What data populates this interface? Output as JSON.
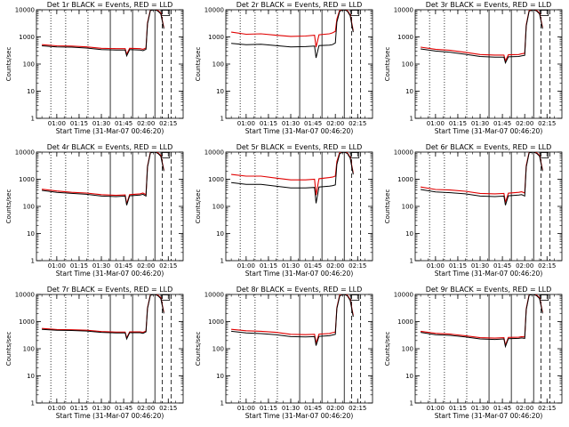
{
  "colors": {
    "events": "#000000",
    "lld": "#e00000",
    "background": "#ffffff"
  },
  "chart_data": [
    {
      "type": "line",
      "title": "Det 1r BLACK = Events, RED = LLD",
      "xlabel": "Start Time (31-Mar-07 00:46:20)",
      "ylabel": "Counts/sec",
      "yscale": "log",
      "ylim": [
        1,
        10000
      ],
      "ytick_labels": [
        "1",
        "10",
        "100",
        "1000",
        "10000"
      ],
      "xtick_labels": [
        "01:00",
        "01:15",
        "01:30",
        "01:45",
        "02:00",
        "02:15"
      ],
      "series": [
        {
          "name": "Events",
          "color": "#000000",
          "x": [
            "00:50",
            "01:00",
            "01:10",
            "01:20",
            "01:30",
            "01:40",
            "01:46",
            "01:47",
            "01:49",
            "01:56",
            "01:58",
            "02:00",
            "02:01",
            "02:03",
            "02:06",
            "02:08",
            "02:10",
            "02:12"
          ],
          "values": [
            470,
            430,
            420,
            390,
            340,
            330,
            330,
            200,
            340,
            330,
            310,
            350,
            3000,
            9500,
            10000,
            9000,
            7000,
            2000
          ]
        },
        {
          "name": "LLD",
          "color": "#e00000",
          "x": [
            "00:50",
            "01:00",
            "01:10",
            "01:20",
            "01:30",
            "01:40",
            "01:46",
            "01:47",
            "01:49",
            "01:56",
            "01:58",
            "02:00",
            "02:01",
            "02:03",
            "02:06",
            "02:08",
            "02:10",
            "02:12"
          ],
          "values": [
            520,
            470,
            460,
            430,
            380,
            370,
            370,
            230,
            380,
            370,
            350,
            390,
            3300,
            10000,
            10500,
            9500,
            7500,
            2200
          ]
        }
      ]
    },
    {
      "type": "line",
      "title": "Det 2r BLACK = Events, RED = LLD",
      "xlabel": "Start Time (31-Mar-07 00:46:20)",
      "ylabel": "Counts/sec",
      "yscale": "log",
      "ylim": [
        1,
        10000
      ],
      "ytick_labels": [
        "1",
        "10",
        "100",
        "1000",
        "10000"
      ],
      "xtick_labels": [
        "01:00",
        "01:15",
        "01:30",
        "01:45",
        "02:00",
        "02:15"
      ],
      "series": [
        {
          "name": "Events",
          "color": "#000000",
          "x": [
            "00:50",
            "01:00",
            "01:10",
            "01:20",
            "01:30",
            "01:40",
            "01:46",
            "01:47",
            "01:49",
            "01:56",
            "01:58",
            "02:00",
            "02:01",
            "02:03",
            "02:06",
            "02:08",
            "02:10",
            "02:12"
          ],
          "values": [
            580,
            520,
            540,
            480,
            430,
            440,
            460,
            170,
            480,
            500,
            520,
            600,
            3500,
            9000,
            10000,
            9000,
            6000,
            1500
          ]
        },
        {
          "name": "LLD",
          "color": "#e00000",
          "x": [
            "00:50",
            "01:00",
            "01:10",
            "01:20",
            "01:30",
            "01:40",
            "01:46",
            "01:47",
            "01:49",
            "01:56",
            "01:58",
            "02:00",
            "02:01",
            "02:03",
            "02:06",
            "02:08",
            "02:10",
            "02:12"
          ],
          "values": [
            1500,
            1250,
            1300,
            1150,
            1050,
            1080,
            1150,
            420,
            1200,
            1300,
            1400,
            1600,
            4500,
            10000,
            10500,
            9500,
            6500,
            1700
          ]
        }
      ]
    },
    {
      "type": "line",
      "title": "Det 3r BLACK = Events, RED = LLD",
      "xlabel": "Start Time (31-Mar-07 00:46:20)",
      "ylabel": "Counts/sec",
      "yscale": "log",
      "ylim": [
        1,
        10000
      ],
      "ytick_labels": [
        "1",
        "10",
        "100",
        "1000",
        "10000"
      ],
      "xtick_labels": [
        "01:00",
        "01:15",
        "01:30",
        "01:45",
        "02:00",
        "02:15"
      ],
      "series": [
        {
          "name": "Events",
          "color": "#000000",
          "x": [
            "00:50",
            "01:00",
            "01:10",
            "01:20",
            "01:30",
            "01:40",
            "01:46",
            "01:47",
            "01:49",
            "01:56",
            "01:58",
            "02:00",
            "02:01",
            "02:03",
            "02:06",
            "02:08",
            "02:10",
            "02:12"
          ],
          "values": [
            360,
            300,
            270,
            230,
            190,
            180,
            180,
            110,
            185,
            190,
            200,
            210,
            2500,
            9000,
            10000,
            9000,
            7000,
            2000
          ]
        },
        {
          "name": "LLD",
          "color": "#e00000",
          "x": [
            "00:50",
            "01:00",
            "01:10",
            "01:20",
            "01:30",
            "01:40",
            "01:46",
            "01:47",
            "01:49",
            "01:56",
            "01:58",
            "02:00",
            "02:01",
            "02:03",
            "02:06",
            "02:08",
            "02:10",
            "02:12"
          ],
          "values": [
            420,
            350,
            320,
            270,
            225,
            215,
            215,
            130,
            220,
            225,
            240,
            250,
            2800,
            9500,
            10500,
            9500,
            7500,
            2200
          ]
        }
      ]
    },
    {
      "type": "line",
      "title": "Det 4r BLACK = Events, RED = LLD",
      "xlabel": "Start Time (31-Mar-07 00:46:20)",
      "ylabel": "Counts/sec",
      "yscale": "log",
      "ylim": [
        1,
        10000
      ],
      "ytick_labels": [
        "1",
        "10",
        "100",
        "1000",
        "10000"
      ],
      "xtick_labels": [
        "01:00",
        "01:15",
        "01:30",
        "01:45",
        "02:00",
        "02:15"
      ],
      "series": [
        {
          "name": "Events",
          "color": "#000000",
          "x": [
            "00:50",
            "01:00",
            "01:10",
            "01:20",
            "01:30",
            "01:40",
            "01:46",
            "01:47",
            "01:49",
            "01:56",
            "01:58",
            "02:00",
            "02:01",
            "02:03",
            "02:06",
            "02:08",
            "02:10",
            "02:12"
          ],
          "values": [
            390,
            330,
            300,
            280,
            240,
            230,
            240,
            110,
            245,
            260,
            280,
            240,
            2800,
            9500,
            10000,
            9000,
            7000,
            2000
          ]
        },
        {
          "name": "LLD",
          "color": "#e00000",
          "x": [
            "00:50",
            "01:00",
            "01:10",
            "01:20",
            "01:30",
            "01:40",
            "01:46",
            "01:47",
            "01:49",
            "01:56",
            "01:58",
            "02:00",
            "02:01",
            "02:03",
            "02:06",
            "02:08",
            "02:10",
            "02:12"
          ],
          "values": [
            430,
            370,
            330,
            310,
            270,
            255,
            265,
            125,
            270,
            290,
            310,
            270,
            3000,
            10000,
            10500,
            9500,
            7500,
            2200
          ]
        }
      ]
    },
    {
      "type": "line",
      "title": "Det 5r BLACK = Events, RED = LLD",
      "xlabel": "Start Time (31-Mar-07 00:46:20)",
      "ylabel": "Counts/sec",
      "yscale": "log",
      "ylim": [
        1,
        10000
      ],
      "ytick_labels": [
        "1",
        "10",
        "100",
        "1000",
        "10000"
      ],
      "xtick_labels": [
        "01:00",
        "01:15",
        "01:30",
        "01:45",
        "02:00",
        "02:15"
      ],
      "series": [
        {
          "name": "Events",
          "color": "#000000",
          "x": [
            "00:50",
            "01:00",
            "01:10",
            "01:20",
            "01:30",
            "01:40",
            "01:46",
            "01:47",
            "01:49",
            "01:56",
            "01:58",
            "02:00",
            "02:01",
            "02:03",
            "02:06",
            "02:08",
            "02:10",
            "02:12"
          ],
          "values": [
            750,
            650,
            650,
            560,
            480,
            480,
            500,
            130,
            520,
            560,
            580,
            620,
            3500,
            9000,
            10000,
            9000,
            6000,
            1500
          ]
        },
        {
          "name": "LLD",
          "color": "#e00000",
          "x": [
            "00:50",
            "01:00",
            "01:10",
            "01:20",
            "01:30",
            "01:40",
            "01:46",
            "01:47",
            "01:49",
            "01:56",
            "01:58",
            "02:00",
            "02:01",
            "02:03",
            "02:06",
            "02:08",
            "02:10",
            "02:12"
          ],
          "values": [
            1500,
            1300,
            1300,
            1100,
            950,
            950,
            1000,
            260,
            1050,
            1150,
            1200,
            1300,
            4500,
            10000,
            10500,
            9500,
            6500,
            1700
          ]
        }
      ]
    },
    {
      "type": "line",
      "title": "Det 6r BLACK = Events, RED = LLD",
      "xlabel": "Start Time (31-Mar-07 00:46:20)",
      "ylabel": "Counts/sec",
      "yscale": "log",
      "ylim": [
        1,
        10000
      ],
      "ytick_labels": [
        "1",
        "10",
        "100",
        "1000",
        "10000"
      ],
      "xtick_labels": [
        "01:00",
        "01:15",
        "01:30",
        "01:45",
        "02:00",
        "02:15"
      ],
      "series": [
        {
          "name": "Events",
          "color": "#000000",
          "x": [
            "00:50",
            "01:00",
            "01:10",
            "01:20",
            "01:30",
            "01:40",
            "01:46",
            "01:47",
            "01:49",
            "01:56",
            "01:58",
            "02:00",
            "02:01",
            "02:03",
            "02:06",
            "02:08",
            "02:10",
            "02:12"
          ],
          "values": [
            420,
            340,
            320,
            290,
            240,
            230,
            240,
            110,
            245,
            260,
            270,
            240,
            2800,
            9500,
            10000,
            9000,
            7000,
            2000
          ]
        },
        {
          "name": "LLD",
          "color": "#e00000",
          "x": [
            "00:50",
            "01:00",
            "01:10",
            "01:20",
            "01:30",
            "01:40",
            "01:46",
            "01:47",
            "01:49",
            "01:56",
            "01:58",
            "02:00",
            "02:01",
            "02:03",
            "02:06",
            "02:08",
            "02:10",
            "02:12"
          ],
          "values": [
            520,
            420,
            400,
            360,
            300,
            290,
            300,
            140,
            305,
            330,
            345,
            310,
            3200,
            10000,
            10500,
            9500,
            7500,
            2200
          ]
        }
      ]
    },
    {
      "type": "line",
      "title": "Det 7r BLACK = Events, RED = LLD",
      "xlabel": "Start Time (31-Mar-07 00:46:20)",
      "ylabel": "Counts/sec",
      "yscale": "log",
      "ylim": [
        1,
        10000
      ],
      "ytick_labels": [
        "1",
        "10",
        "100",
        "1000",
        "10000"
      ],
      "xtick_labels": [
        "01:00",
        "01:15",
        "01:30",
        "01:45",
        "02:00",
        "02:15"
      ],
      "series": [
        {
          "name": "Events",
          "color": "#000000",
          "x": [
            "00:50",
            "01:00",
            "01:10",
            "01:20",
            "01:30",
            "01:40",
            "01:46",
            "01:47",
            "01:49",
            "01:56",
            "01:58",
            "02:00",
            "02:01",
            "02:03",
            "02:06",
            "02:08",
            "02:10",
            "02:12"
          ],
          "values": [
            520,
            480,
            470,
            450,
            400,
            380,
            380,
            230,
            390,
            390,
            370,
            420,
            3000,
            9500,
            10000,
            9000,
            7000,
            2000
          ]
        },
        {
          "name": "LLD",
          "color": "#e00000",
          "x": [
            "00:50",
            "01:00",
            "01:10",
            "01:20",
            "01:30",
            "01:40",
            "01:46",
            "01:47",
            "01:49",
            "01:56",
            "01:58",
            "02:00",
            "02:01",
            "02:03",
            "02:06",
            "02:08",
            "02:10",
            "02:12"
          ],
          "values": [
            560,
            510,
            500,
            480,
            430,
            410,
            410,
            250,
            420,
            420,
            400,
            450,
            3200,
            10000,
            10500,
            9500,
            7500,
            2200
          ]
        }
      ]
    },
    {
      "type": "line",
      "title": "Det 8r BLACK = Events, RED = LLD",
      "xlabel": "Start Time (31-Mar-07 00:46:20)",
      "ylabel": "Counts/sec",
      "yscale": "log",
      "ylim": [
        1,
        10000
      ],
      "ytick_labels": [
        "1",
        "10",
        "100",
        "1000",
        "10000"
      ],
      "xtick_labels": [
        "01:00",
        "01:15",
        "01:30",
        "01:45",
        "02:00",
        "02:15"
      ],
      "series": [
        {
          "name": "Events",
          "color": "#000000",
          "x": [
            "00:50",
            "01:00",
            "01:10",
            "01:20",
            "01:30",
            "01:40",
            "01:46",
            "01:47",
            "01:49",
            "01:56",
            "01:58",
            "02:00",
            "02:01",
            "02:03",
            "02:06",
            "02:08",
            "02:10",
            "02:12"
          ],
          "values": [
            440,
            380,
            360,
            330,
            280,
            270,
            280,
            130,
            285,
            300,
            320,
            340,
            3000,
            9000,
            10000,
            9000,
            6000,
            1500
          ]
        },
        {
          "name": "LLD",
          "color": "#e00000",
          "x": [
            "00:50",
            "01:00",
            "01:10",
            "01:20",
            "01:30",
            "01:40",
            "01:46",
            "01:47",
            "01:49",
            "01:56",
            "01:58",
            "02:00",
            "02:01",
            "02:03",
            "02:06",
            "02:08",
            "02:10",
            "02:12"
          ],
          "values": [
            520,
            460,
            440,
            400,
            340,
            330,
            340,
            160,
            345,
            365,
            390,
            410,
            3300,
            10000,
            10500,
            9500,
            6500,
            1700
          ]
        }
      ]
    },
    {
      "type": "line",
      "title": "Det 9r BLACK = Events, RED = LLD",
      "xlabel": "Start Time (31-Mar-07 00:46:20)",
      "ylabel": "Counts/sec",
      "yscale": "log",
      "ylim": [
        1,
        10000
      ],
      "ytick_labels": [
        "1",
        "10",
        "100",
        "1000",
        "10000"
      ],
      "xtick_labels": [
        "01:00",
        "01:15",
        "01:30",
        "01:45",
        "02:00",
        "02:15"
      ],
      "series": [
        {
          "name": "Events",
          "color": "#000000",
          "x": [
            "00:50",
            "01:00",
            "01:10",
            "01:20",
            "01:30",
            "01:40",
            "01:46",
            "01:47",
            "01:49",
            "01:56",
            "01:58",
            "02:00",
            "02:01",
            "02:03",
            "02:06",
            "02:08",
            "02:10",
            "02:12"
          ],
          "values": [
            400,
            330,
            310,
            270,
            230,
            220,
            230,
            120,
            235,
            240,
            250,
            240,
            2700,
            9500,
            10000,
            9000,
            7000,
            2000
          ]
        },
        {
          "name": "LLD",
          "color": "#e00000",
          "x": [
            "00:50",
            "01:00",
            "01:10",
            "01:20",
            "01:30",
            "01:40",
            "01:46",
            "01:47",
            "01:49",
            "01:56",
            "01:58",
            "02:00",
            "02:01",
            "02:03",
            "02:06",
            "02:08",
            "02:10",
            "02:12"
          ],
          "values": [
            440,
            370,
            345,
            300,
            255,
            245,
            255,
            135,
            260,
            265,
            280,
            270,
            3000,
            10000,
            10500,
            9500,
            7500,
            2200
          ]
        }
      ]
    }
  ]
}
